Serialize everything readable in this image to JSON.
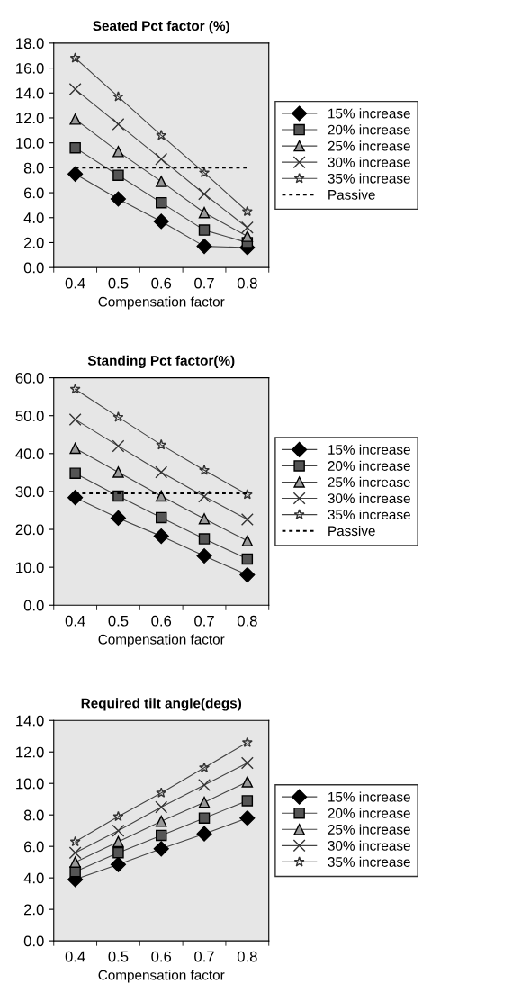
{
  "chart_data": [
    {
      "type": "line",
      "title": "Seated Pct factor (%)",
      "xlabel": "Compensation factor",
      "categories": [
        "0.4",
        "0.5",
        "0.6",
        "0.7",
        "0.8"
      ],
      "ylim": [
        0,
        18
      ],
      "yticks": [
        {
          "value": 0,
          "label": "0.0"
        },
        {
          "value": 2,
          "label": "2.0"
        },
        {
          "value": 4,
          "label": "4.0"
        },
        {
          "value": 6,
          "label": "6.0"
        },
        {
          "value": 8,
          "label": "8.0"
        },
        {
          "value": 10,
          "label": "10.0"
        },
        {
          "value": 12,
          "label": "12.0"
        },
        {
          "value": 14,
          "label": "14.0"
        },
        {
          "value": 16,
          "label": "16.0"
        },
        {
          "value": 18,
          "label": "18.0"
        }
      ],
      "grid": false,
      "legend": "right",
      "series": [
        {
          "name": "15% increase",
          "color": "#000000",
          "marker": "diamond",
          "line_style": "solid",
          "values": [
            7.5,
            5.5,
            3.7,
            1.7,
            1.6
          ]
        },
        {
          "name": "20% increase",
          "color": "#555555",
          "marker": "square",
          "line_style": "solid",
          "values": [
            9.6,
            7.4,
            5.2,
            3.0,
            2.0
          ]
        },
        {
          "name": "25% increase",
          "color": "#999999",
          "marker": "triangle",
          "line_style": "solid",
          "values": [
            11.9,
            9.3,
            6.9,
            4.4,
            2.5
          ]
        },
        {
          "name": "30% increase",
          "color": "#333333",
          "marker": "cross",
          "line_style": "solid",
          "values": [
            14.3,
            11.5,
            8.7,
            5.9,
            3.2
          ]
        },
        {
          "name": "35% increase",
          "color": "#333333",
          "marker": "star",
          "line_style": "solid",
          "values": [
            16.8,
            13.7,
            10.6,
            7.6,
            4.5
          ]
        },
        {
          "name": "Passive",
          "color": "#000000",
          "marker": "none",
          "line_style": "dotted",
          "values": [
            8.0,
            8.0,
            8.0,
            8.0,
            8.0
          ]
        }
      ]
    },
    {
      "type": "line",
      "title": "Standing Pct factor(%)",
      "xlabel": "Compensation factor",
      "categories": [
        "0.4",
        "0.5",
        "0.6",
        "0.7",
        "0.8"
      ],
      "ylim": [
        0,
        60
      ],
      "yticks": [
        {
          "value": 0,
          "label": "0.0"
        },
        {
          "value": 10,
          "label": "10.0"
        },
        {
          "value": 20,
          "label": "20.0"
        },
        {
          "value": 30,
          "label": "30.0"
        },
        {
          "value": 40,
          "label": "40.0"
        },
        {
          "value": 50,
          "label": "50.0"
        },
        {
          "value": 60,
          "label": "60.0"
        }
      ],
      "grid": false,
      "legend": "right",
      "series": [
        {
          "name": "15% increase",
          "color": "#000000",
          "marker": "diamond",
          "line_style": "solid",
          "values": [
            28.4,
            23.0,
            18.2,
            13.0,
            8.0
          ]
        },
        {
          "name": "20% increase",
          "color": "#555555",
          "marker": "square",
          "line_style": "solid",
          "values": [
            34.8,
            28.8,
            23.1,
            17.5,
            12.2
          ]
        },
        {
          "name": "25% increase",
          "color": "#999999",
          "marker": "triangle",
          "line_style": "solid",
          "values": [
            41.4,
            35.1,
            28.8,
            22.8,
            17.0
          ]
        },
        {
          "name": "30% increase",
          "color": "#333333",
          "marker": "cross",
          "line_style": "solid",
          "values": [
            49.0,
            42.0,
            35.1,
            28.7,
            22.6
          ]
        },
        {
          "name": "35% increase",
          "color": "#333333",
          "marker": "star",
          "line_style": "solid",
          "values": [
            57.0,
            49.6,
            42.3,
            35.6,
            29.2
          ]
        },
        {
          "name": "Passive",
          "color": "#000000",
          "marker": "none",
          "line_style": "dotted",
          "values": [
            29.5,
            29.5,
            29.5,
            29.5,
            29.5
          ]
        }
      ]
    },
    {
      "type": "line",
      "title": "Required tilt angle(degs)",
      "xlabel": "Compensation factor",
      "categories": [
        "0.4",
        "0.5",
        "0.6",
        "0.7",
        "0.8"
      ],
      "ylim": [
        0,
        14
      ],
      "yticks": [
        {
          "value": 0,
          "label": "0.0"
        },
        {
          "value": 2,
          "label": "2.0"
        },
        {
          "value": 4,
          "label": "4.0"
        },
        {
          "value": 6,
          "label": "6.0"
        },
        {
          "value": 8,
          "label": "8.0"
        },
        {
          "value": 10,
          "label": "10.0"
        },
        {
          "value": 12,
          "label": "12.0"
        },
        {
          "value": 14,
          "label": "14.0"
        }
      ],
      "grid": false,
      "legend": "right",
      "series": [
        {
          "name": "15% increase",
          "color": "#000000",
          "marker": "diamond",
          "line_style": "solid",
          "values": [
            3.9,
            4.85,
            5.85,
            6.8,
            7.8
          ]
        },
        {
          "name": "20% increase",
          "color": "#555555",
          "marker": "square",
          "line_style": "solid",
          "values": [
            4.4,
            5.6,
            6.7,
            7.8,
            8.9
          ]
        },
        {
          "name": "25% increase",
          "color": "#999999",
          "marker": "triangle",
          "line_style": "solid",
          "values": [
            5.0,
            6.3,
            7.6,
            8.8,
            10.1
          ]
        },
        {
          "name": "30% increase",
          "color": "#333333",
          "marker": "cross",
          "line_style": "solid",
          "values": [
            5.6,
            7.0,
            8.5,
            9.9,
            11.3
          ]
        },
        {
          "name": "35% increase",
          "color": "#333333",
          "marker": "star",
          "line_style": "solid",
          "values": [
            6.3,
            7.9,
            9.4,
            11.0,
            12.6
          ]
        }
      ]
    }
  ]
}
